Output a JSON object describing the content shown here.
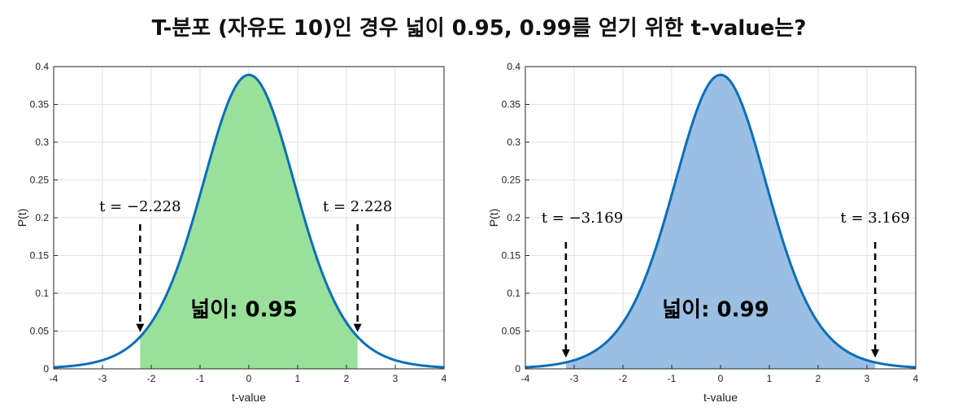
{
  "title": "T-분포 (자유도 10)인 경우 넓이 0.95, 0.99를 얻기 위한 t-value는?",
  "chart_data": [
    {
      "type": "area",
      "distribution": "student-t",
      "degrees_of_freedom": 10,
      "xlabel": "t-value",
      "ylabel": "P(t)",
      "xlim": [
        -4,
        4
      ],
      "ylim": [
        0,
        0.4
      ],
      "x_ticks": [
        "-4",
        "-3",
        "-2",
        "-1",
        "0",
        "1",
        "2",
        "3",
        "4"
      ],
      "y_ticks": [
        "0",
        "0.05",
        "0.1",
        "0.15",
        "0.2",
        "0.25",
        "0.3",
        "0.35",
        "0.4"
      ],
      "grid": true,
      "shaded_interval": [
        -2.228,
        2.228
      ],
      "fill_color": "#99E09A",
      "line_color": "#0A6EB8",
      "annotations": {
        "left_label": "t = −2.228",
        "right_label": "t = 2.228",
        "area_label": "넓이: 0.95"
      }
    },
    {
      "type": "area",
      "distribution": "student-t",
      "degrees_of_freedom": 10,
      "xlabel": "t-value",
      "ylabel": "P(t)",
      "xlim": [
        -4,
        4
      ],
      "ylim": [
        0,
        0.4
      ],
      "x_ticks": [
        "-4",
        "-3",
        "-2",
        "-1",
        "0",
        "1",
        "2",
        "3",
        "4"
      ],
      "y_ticks": [
        "0",
        "0.05",
        "0.1",
        "0.15",
        "0.2",
        "0.25",
        "0.3",
        "0.35",
        "0.4"
      ],
      "grid": true,
      "shaded_interval": [
        -3.169,
        3.169
      ],
      "fill_color": "#9BBFE3",
      "line_color": "#0A6EB8",
      "annotations": {
        "left_label": "t = −3.169",
        "right_label": "t = 3.169",
        "area_label": "넓이: 0.99"
      }
    }
  ]
}
